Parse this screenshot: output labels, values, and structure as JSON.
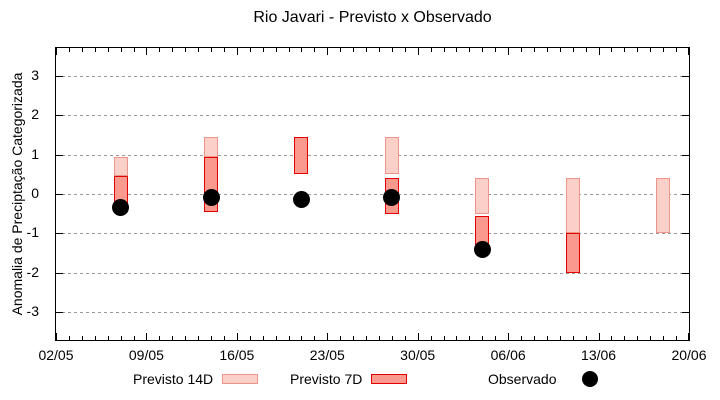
{
  "chart_data": {
    "type": "bar",
    "title": "Rio Javari - Previsto x Observado",
    "ylabel": "Anomalia de Preciptação Categorizada",
    "xlabel": "",
    "ylim": [
      -3.7,
      3.7
    ],
    "yticks": [
      3,
      2,
      1,
      0,
      -1,
      -2,
      -3
    ],
    "grid": "horizontal-dotted",
    "legend_position": "bottom",
    "x_domain_days": 49,
    "x_ticks": [
      {
        "day": 0,
        "label": "02/05"
      },
      {
        "day": 7,
        "label": "09/05"
      },
      {
        "day": 14,
        "label": "16/05"
      },
      {
        "day": 21,
        "label": "23/05"
      },
      {
        "day": 28,
        "label": "30/05"
      },
      {
        "day": 35,
        "label": "06/06"
      },
      {
        "day": 42,
        "label": "13/06"
      },
      {
        "day": 49,
        "label": "20/06"
      }
    ],
    "bar_dates": [
      "07/05",
      "14/05",
      "21/05",
      "28/05",
      "04/06",
      "11/06",
      "18/06"
    ],
    "bar_days": [
      5,
      12,
      19,
      26,
      33,
      40,
      47
    ],
    "series": [
      {
        "name": "Previsto 14D",
        "kind": "range",
        "fill": "#fad0c8",
        "border": "#ef9489",
        "ranges": [
          [
            0.45,
            0.95
          ],
          [
            0.95,
            1.45
          ],
          null,
          [
            0.5,
            1.45
          ],
          [
            -0.5,
            0.4
          ],
          [
            -1.0,
            0.4
          ],
          [
            -1.0,
            0.4
          ]
        ]
      },
      {
        "name": "Previsto 7D",
        "kind": "range",
        "fill": "#fa998e",
        "border": "#e30000",
        "ranges": [
          [
            -0.25,
            0.45
          ],
          [
            -0.45,
            0.95
          ],
          [
            0.5,
            1.45
          ],
          [
            -0.5,
            0.4
          ],
          [
            -1.3,
            -0.55
          ],
          [
            -2.0,
            -1.0
          ],
          null
        ]
      },
      {
        "name": "Observado",
        "kind": "point",
        "color": "#000000",
        "values": [
          -0.35,
          -0.1,
          -0.15,
          -0.1,
          -1.4,
          null,
          null
        ]
      }
    ]
  },
  "colors": {
    "grid": "#999999",
    "axis": "#000000",
    "background": "#ffffff"
  }
}
